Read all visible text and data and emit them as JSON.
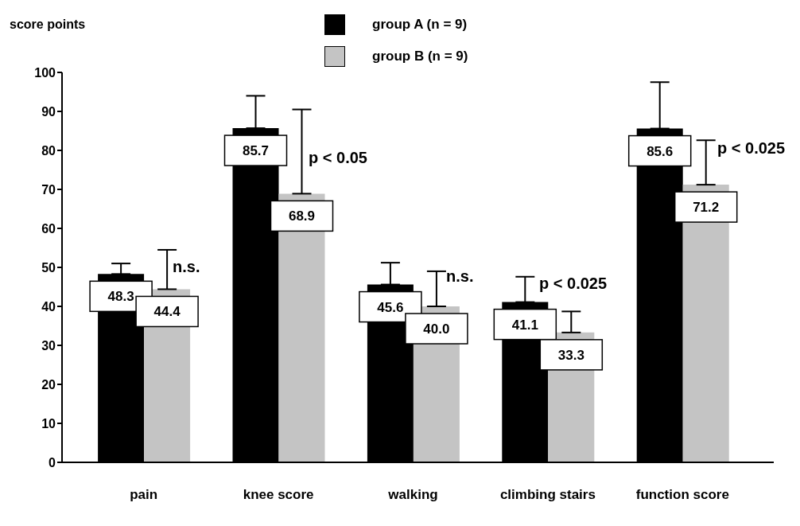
{
  "chart_data": {
    "type": "bar",
    "ylabel": "score points",
    "categories": [
      "pain",
      "knee score",
      "walking",
      "climbing stairs",
      "function score"
    ],
    "series": [
      {
        "name": "group A (n = 9)",
        "color": "#000000",
        "values": [
          48.3,
          85.7,
          45.6,
          41.1,
          85.6
        ],
        "value_labels": [
          "48.3",
          "85.7",
          "45.6",
          "41.1",
          "85.6"
        ],
        "errors": [
          [
            48.3,
            51
          ],
          [
            85.7,
            94
          ],
          [
            45.6,
            51.2
          ],
          [
            41.1,
            47.6
          ],
          [
            85.6,
            97.5
          ]
        ]
      },
      {
        "name": "group B (n = 9)",
        "color": "#c4c4c4",
        "values": [
          44.4,
          68.9,
          40.0,
          33.3,
          71.2
        ],
        "value_labels": [
          "44.4",
          "68.9",
          "40.0",
          "33.3",
          "71.2"
        ],
        "errors": [
          [
            44.4,
            54.5
          ],
          [
            68.9,
            90.5
          ],
          [
            40.0,
            49
          ],
          [
            33.3,
            38.7
          ],
          [
            71.2,
            82.6
          ]
        ]
      }
    ],
    "ylim": [
      0,
      100
    ],
    "yticks": [
      0,
      10,
      20,
      30,
      40,
      50,
      60,
      70,
      80,
      90,
      100
    ],
    "legend": "top",
    "grid": false,
    "annotations": [
      "n.s.",
      "p < 0.05",
      "n.s.",
      "p < 0.025",
      "p < 0.025"
    ]
  }
}
